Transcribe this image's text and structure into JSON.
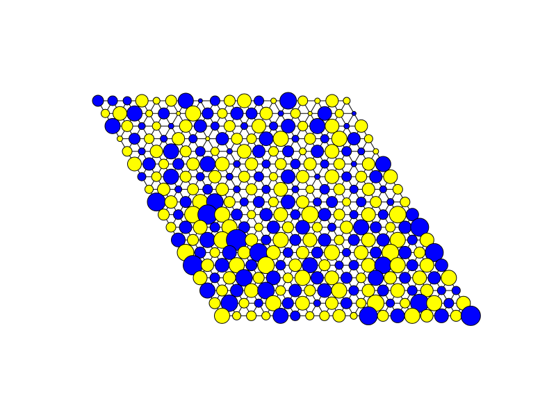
{
  "lattice": {
    "positive_color": "#ffff00",
    "negative_color": "#0000ff",
    "rows": [
      [
        -8,
        -7,
        -6,
        9,
        5,
        8,
        -11,
        -3,
        -7,
        8,
        10,
        -7,
        4,
        -12,
        7,
        4,
        9,
        5
      ],
      [
        6,
        10,
        -11,
        5,
        -8,
        3,
        11,
        -8,
        7,
        -9,
        -8,
        9,
        -4,
        7,
        3,
        -10,
        6,
        -3
      ],
      [
        -11,
        8,
        -5,
        6,
        -4,
        9,
        -9,
        -6,
        8,
        -5,
        10,
        -6,
        -10,
        7,
        -11,
        10,
        -4,
        9
      ],
      [
        4,
        -8,
        7,
        -5,
        9,
        -6,
        3,
        -9,
        8,
        7,
        -10,
        11,
        -5,
        8,
        -6,
        11,
        -9,
        6
      ],
      [
        7,
        -5,
        9,
        -11,
        8,
        -7,
        6,
        -4,
        10,
        -9,
        7,
        -8,
        5,
        -9,
        10,
        -7,
        -5,
        4
      ],
      [
        10,
        -9,
        7,
        -8,
        9,
        -11,
        10,
        -5,
        9,
        -6,
        8,
        -7,
        9,
        -6,
        8,
        -4,
        9,
        -11
      ],
      [
        -6,
        7,
        -11,
        8,
        -6,
        9,
        -5,
        8,
        -7,
        6,
        -10,
        9,
        -4,
        10,
        -7,
        8,
        -9,
        10
      ],
      [
        6,
        9,
        -5,
        8,
        -7,
        9,
        -5,
        8,
        -6,
        10,
        -5,
        6,
        -7,
        8,
        -6,
        9,
        -5,
        7
      ],
      [
        -13,
        9,
        -8,
        11,
        -12,
        8,
        -6,
        -8,
        7,
        -10,
        9,
        -6,
        -8,
        6,
        -7,
        8,
        -5,
        7
      ],
      [
        8,
        -7,
        12,
        -14,
        11,
        -8,
        6,
        -9,
        10,
        -7,
        12,
        -9,
        8,
        -6,
        10,
        -7,
        12,
        -9
      ],
      [
        7,
        -9,
        10,
        -7,
        11,
        -8,
        6,
        -9,
        8,
        -10,
        7,
        -6,
        9,
        -11,
        -8,
        7,
        -9,
        -13
      ],
      [
        -10,
        8,
        -11,
        12,
        -15,
        9,
        -7,
        11,
        -8,
        10,
        -9,
        7,
        -8,
        10,
        -9,
        11,
        -7,
        10
      ],
      [
        12,
        -8,
        7,
        -10,
        9,
        -13,
        10,
        -7,
        9,
        -8,
        11,
        -6,
        10,
        -8,
        12,
        -9,
        8,
        -13
      ],
      [
        -14,
        9,
        -10,
        11,
        -8,
        12,
        -7,
        9,
        -11,
        8,
        -6,
        -7,
        10,
        -12,
        11,
        -8,
        10,
        -9
      ],
      [
        10,
        -7,
        9,
        -12,
        8,
        -10,
        7,
        11,
        -9,
        10,
        -8,
        7,
        -11,
        9,
        -8,
        10,
        -9,
        11
      ],
      [
        -11,
        8,
        -9,
        10,
        -12,
        7,
        -9,
        8,
        -10,
        11,
        -7,
        9,
        -8,
        10,
        -7,
        9,
        -6,
        -6
      ],
      [
        8,
        -12,
        7,
        -6,
        11,
        -8,
        10,
        -5,
        9,
        -8,
        7,
        12,
        -6,
        7,
        -13,
        11,
        -7,
        10
      ],
      [
        11,
        6,
        7,
        6,
        -11,
        -7,
        6,
        7,
        9,
        5,
        -13,
        8,
        -10,
        11,
        9,
        -10,
        8,
        -14
      ]
    ]
  }
}
